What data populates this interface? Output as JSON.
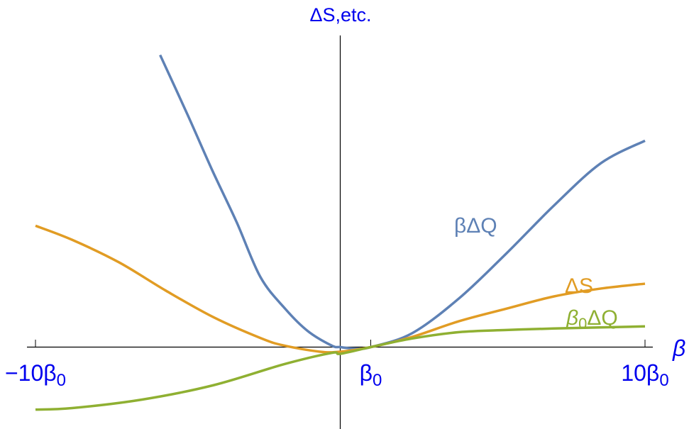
{
  "chart_data": {
    "type": "line",
    "title": "",
    "xlabel": "β",
    "ylabel": "ΔS,etc.",
    "xlim": [
      -10,
      10
    ],
    "x_ticks": [
      {
        "value": -10,
        "label": "−10β",
        "sub": "0"
      },
      {
        "value": 1,
        "label": "β",
        "sub": "0"
      },
      {
        "value": 10,
        "label": "10β",
        "sub": "0"
      }
    ],
    "grid": false,
    "legend": "none (curves labelled inline)",
    "series": [
      {
        "name": "βΔQ",
        "label_main": "βΔQ",
        "color": "#5E81B5",
        "x": [
          -5.91,
          -5.0,
          -4.2,
          -3.4,
          -2.62,
          -1.8,
          -1.07,
          -0.28,
          0,
          0.5,
          1,
          2.35,
          3.9,
          5.45,
          7.0,
          8.55,
          10
        ],
        "y": [
          9.58,
          7.6,
          5.8,
          4.1,
          2.3,
          1.25,
          0.53,
          0.05,
          0,
          -0.05,
          0,
          0.45,
          1.6,
          3.07,
          4.63,
          6.03,
          6.77
        ]
      },
      {
        "name": "ΔS",
        "label_main": "ΔS",
        "color": "#E19C24",
        "x": [
          -10,
          -8.8,
          -7.26,
          -5.72,
          -4.16,
          -2.6,
          -1.84,
          -0.67,
          0,
          1,
          2.35,
          3.9,
          5.45,
          7.0,
          8.55,
          10
        ],
        "y": [
          3.98,
          3.52,
          2.78,
          1.85,
          0.98,
          0.29,
          0.05,
          -0.15,
          -0.15,
          0,
          0.33,
          0.85,
          1.26,
          1.66,
          1.92,
          2.08
        ]
      },
      {
        "name": "β0ΔQ",
        "label_main": "β",
        "label_sub": "0",
        "label_tail": "ΔQ",
        "color": "#8FB032",
        "x": [
          -10,
          -8.8,
          -6.5,
          -4.16,
          -1.84,
          -0.28,
          0,
          1,
          2.35,
          3.9,
          5.45,
          7.0,
          10
        ],
        "y": [
          -2.05,
          -2.0,
          -1.72,
          -1.25,
          -0.56,
          -0.19,
          -0.22,
          0,
          0.28,
          0.49,
          0.56,
          0.61,
          0.68
        ]
      }
    ]
  },
  "colors": {
    "axis_label": "#0000EE",
    "axis": "#000000"
  }
}
